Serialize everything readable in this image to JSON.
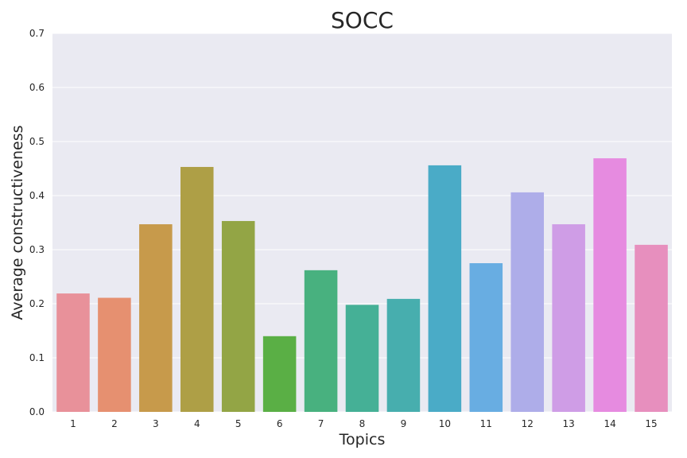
{
  "chart_data": {
    "type": "bar",
    "title": "SOCC",
    "xlabel": "Topics",
    "ylabel": "Average constructiveness",
    "categories": [
      "1",
      "2",
      "3",
      "4",
      "5",
      "6",
      "7",
      "8",
      "9",
      "10",
      "11",
      "12",
      "13",
      "14",
      "15"
    ],
    "values": [
      0.219,
      0.211,
      0.347,
      0.453,
      0.353,
      0.14,
      0.262,
      0.198,
      0.209,
      0.456,
      0.275,
      0.406,
      0.347,
      0.469,
      0.309
    ],
    "colors": [
      "#e8919a",
      "#e69070",
      "#c79a4b",
      "#ae9f46",
      "#93a545",
      "#5aaf45",
      "#48b17f",
      "#45b096",
      "#47aeae",
      "#4aabc7",
      "#68ade2",
      "#aeade9",
      "#cf9de6",
      "#e68be0",
      "#e78fbe"
    ],
    "ylim": [
      0,
      0.7
    ],
    "yticks": [
      "0.0",
      "0.1",
      "0.2",
      "0.3",
      "0.4",
      "0.5",
      "0.6",
      "0.7"
    ],
    "grid": true,
    "background": "#eaeaf2"
  }
}
